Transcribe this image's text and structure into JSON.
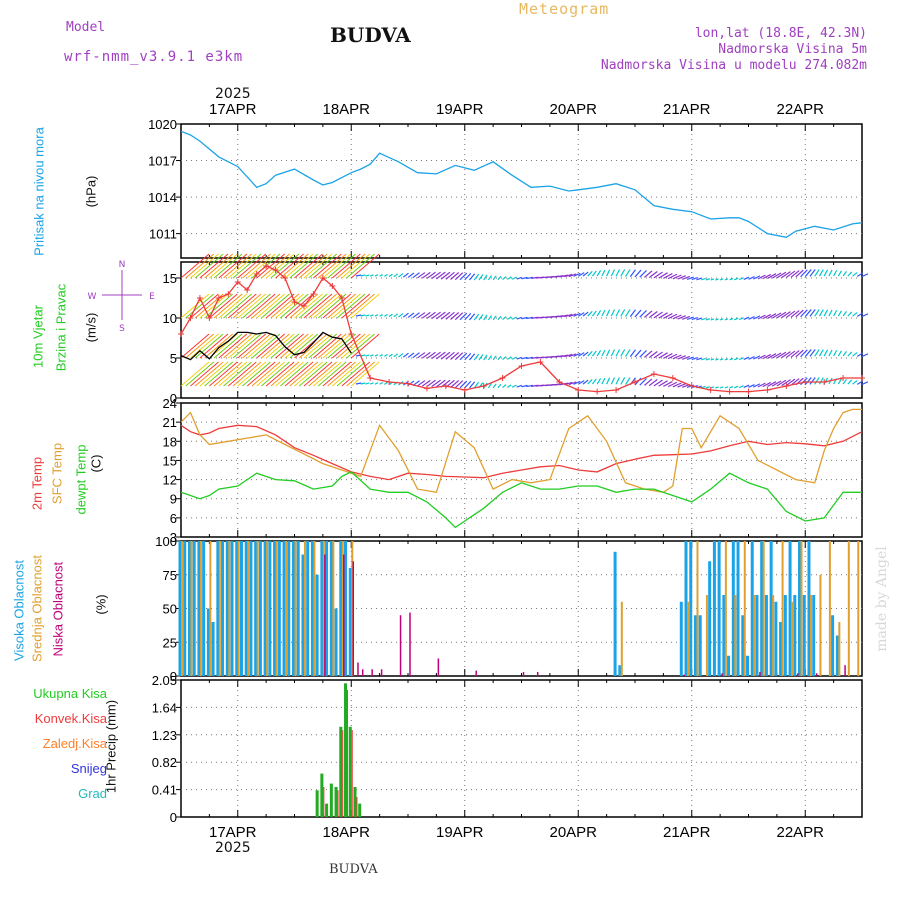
{
  "header": {
    "model_label": "Model",
    "model_name": "wrf-nmm_v3.9.1 e3km",
    "station": "BUDVA",
    "title": "Meteogram",
    "lonlat": "lon,lat (18.8E, 42.3N)",
    "elevation": "Nadmorska Visina 5m",
    "model_elevation": "Nadmorska Visina u modelu 274.082m",
    "footer_station": "BUDVA",
    "watermark": "made by Angel"
  },
  "colors": {
    "pressure": "#1aa3e6",
    "wind": "#00b050",
    "wind_speed": "#000000",
    "gust": "#ee3b3b",
    "temp2m": "#ee3b3b",
    "sfc": "#e0a030",
    "dewpt": "#22cc22",
    "high_cloud": "#1aa3e6",
    "mid_cloud": "#e0a030",
    "low_cloud": "#c0007a",
    "total_rain": "#22aa22",
    "conv_rain": "#ee3b3b",
    "freezing": "#ff7f27",
    "snow": "#3333dd",
    "hail": "#22bbbb",
    "title": "#e8b860",
    "meta": "#a040c0"
  },
  "chart_data": {
    "type": "meteogram",
    "time_axis": {
      "start": "2025-04-16 12:00",
      "end": "2025-04-22 12:00",
      "step_hours": 1,
      "top_year": "2025",
      "bottom_year": "2025",
      "tick_labels": [
        "17APR",
        "18APR",
        "19APR",
        "20APR",
        "21APR",
        "22APR"
      ],
      "tick_hours": [
        12,
        36,
        60,
        84,
        108,
        132
      ]
    },
    "panels": [
      {
        "id": "pressure",
        "type": "line",
        "ylabel_lines": [
          "Pritisak na nivou mora",
          "(hPa)"
        ],
        "ylim": [
          1009,
          1020
        ],
        "yticks": [
          1011,
          1014,
          1017,
          1020
        ],
        "series": [
          {
            "name": "MSLP",
            "x": [
              0,
              2,
              4,
              8,
              12,
              16,
              18,
              20,
              24,
              28,
              30,
              32,
              34,
              36,
              38,
              40,
              42,
              46,
              50,
              54,
              58,
              62,
              66,
              70,
              74,
              78,
              82,
              84,
              88,
              92,
              96,
              100,
              104,
              108,
              112,
              116,
              118,
              120,
              124,
              128,
              130,
              134,
              138,
              142,
              144
            ],
            "values": [
              1019.4,
              1019.1,
              1018.6,
              1017.3,
              1016.5,
              1014.8,
              1015.1,
              1015.8,
              1016.3,
              1015.4,
              1015.0,
              1015.2,
              1015.6,
              1016.0,
              1016.3,
              1016.7,
              1017.6,
              1016.9,
              1016.0,
              1015.9,
              1016.6,
              1016.2,
              1016.9,
              1015.8,
              1014.8,
              1014.9,
              1014.5,
              1014.6,
              1014.8,
              1015.1,
              1014.6,
              1013.3,
              1013.0,
              1012.8,
              1012.2,
              1012.3,
              1012.3,
              1012.0,
              1011.0,
              1010.7,
              1011.2,
              1011.6,
              1011.3,
              1011.8,
              1011.9
            ]
          }
        ]
      },
      {
        "id": "wind",
        "type": "line",
        "ylabel_lines": [
          "10m Vjetar",
          "Brzina i Pravac",
          "(m/s)"
        ],
        "compass": [
          "N",
          "W",
          "E",
          "S"
        ],
        "ylim": [
          0,
          17
        ],
        "yticks": [
          0,
          5,
          10,
          15
        ],
        "series": [
          {
            "name": "Wind speed",
            "x": [
              0,
              2,
              4,
              6,
              8,
              10,
              12,
              14,
              16,
              18,
              20,
              22,
              24,
              26,
              28,
              30,
              32,
              34,
              36
            ],
            "values": [
              5.3,
              4.8,
              5.9,
              4.9,
              6.3,
              7.1,
              8.2,
              8.2,
              8.0,
              8.2,
              7.8,
              6.4,
              5.4,
              5.7,
              6.9,
              8.2,
              7.6,
              7.4,
              5.6
            ]
          },
          {
            "name": "Gust",
            "x": [
              0,
              2,
              4,
              6,
              8,
              10,
              12,
              14,
              16,
              18,
              20,
              22,
              24,
              26,
              28,
              30,
              32,
              34,
              36,
              40,
              44,
              48,
              52,
              56,
              60,
              64,
              68,
              72,
              76,
              80,
              84,
              88,
              92,
              96,
              100,
              104,
              108,
              112,
              116,
              120,
              124,
              128,
              132,
              136,
              140,
              144
            ],
            "values": [
              8.0,
              10.0,
              12.5,
              10.0,
              12.5,
              13.0,
              14.5,
              13.5,
              15.5,
              16.5,
              16.0,
              15.0,
              12.0,
              11.5,
              13.0,
              15.0,
              14.0,
              12.5,
              8.0,
              2.5,
              2.0,
              1.8,
              1.2,
              1.5,
              1.0,
              1.5,
              2.5,
              4.0,
              4.5,
              2.0,
              1.0,
              0.8,
              1.0,
              2.0,
              3.0,
              2.5,
              1.5,
              1.0,
              0.8,
              0.8,
              1.0,
              1.5,
              2.0,
              2.0,
              2.5,
              2.5
            ]
          }
        ],
        "barb_rows_ms": [
          15,
          10,
          5,
          1.5
        ]
      },
      {
        "id": "temperature",
        "type": "line",
        "ylabel_lines": [
          "2m Temp",
          "SFC Temp",
          "dewpt Temp",
          "(C)"
        ],
        "ylim": [
          3,
          24
        ],
        "yticks": [
          3,
          6,
          9,
          12,
          15,
          18,
          21,
          24
        ],
        "series": [
          {
            "name": "2m Temp",
            "x": [
              0,
              2,
              4,
              6,
              8,
              12,
              16,
              20,
              24,
              28,
              32,
              36,
              40,
              44,
              48,
              52,
              56,
              60,
              64,
              68,
              72,
              76,
              80,
              84,
              88,
              92,
              96,
              100,
              104,
              108,
              112,
              116,
              120,
              124,
              128,
              132,
              136,
              140,
              144
            ],
            "values": [
              20.5,
              19.5,
              19.0,
              19.3,
              20.0,
              20.5,
              20.3,
              19.0,
              17.0,
              15.8,
              14.5,
              13.2,
              12.5,
              12.0,
              13.0,
              12.8,
              12.5,
              12.4,
              12.3,
              13.0,
              13.5,
              14.0,
              14.2,
              13.5,
              13.2,
              14.5,
              15.2,
              15.8,
              15.9,
              16.0,
              16.5,
              17.3,
              18.0,
              17.5,
              17.8,
              17.6,
              17.3,
              18.0,
              19.5
            ]
          },
          {
            "name": "SFC Temp",
            "x": [
              0,
              2,
              4,
              6,
              10,
              14,
              18,
              22,
              26,
              30,
              34,
              38,
              42,
              46,
              50,
              54,
              58,
              62,
              66,
              70,
              74,
              78,
              82,
              86,
              90,
              94,
              98,
              102,
              104,
              106,
              108,
              110,
              114,
              118,
              122,
              126,
              130,
              134,
              136,
              138,
              140,
              142,
              144
            ],
            "values": [
              21.0,
              22.5,
              19.0,
              17.5,
              18.0,
              18.5,
              19.0,
              17.5,
              16.0,
              14.5,
              13.5,
              12.5,
              20.5,
              16.5,
              10.5,
              10.0,
              19.5,
              17.0,
              10.5,
              12.0,
              11.5,
              12.0,
              20.0,
              22.0,
              18.0,
              11.5,
              10.5,
              10.0,
              11.0,
              20.0,
              20.0,
              17.0,
              22.0,
              20.0,
              15.0,
              13.5,
              12.0,
              11.5,
              16.5,
              20.0,
              22.5,
              23.0,
              23.0
            ]
          },
          {
            "name": "dewpt Temp",
            "x": [
              0,
              2,
              4,
              6,
              8,
              12,
              16,
              20,
              24,
              28,
              32,
              34,
              36,
              40,
              44,
              48,
              52,
              56,
              58,
              60,
              62,
              64,
              68,
              72,
              76,
              80,
              84,
              88,
              92,
              96,
              100,
              104,
              108,
              112,
              116,
              120,
              124,
              128,
              132,
              136,
              138,
              140,
              142,
              144
            ],
            "values": [
              10.0,
              9.5,
              9.0,
              9.5,
              10.5,
              11.0,
              13.0,
              12.0,
              11.8,
              10.5,
              11.0,
              12.5,
              13.2,
              10.5,
              10.0,
              10.0,
              8.5,
              6.0,
              4.5,
              5.5,
              6.5,
              7.5,
              10.0,
              11.5,
              10.5,
              10.5,
              11.0,
              11.0,
              10.0,
              10.5,
              10.5,
              9.5,
              8.5,
              10.5,
              13.0,
              11.5,
              10.5,
              7.0,
              5.5,
              6.0,
              8.0,
              10.0,
              10.0,
              10.0
            ]
          }
        ]
      },
      {
        "id": "clouds",
        "type": "bar",
        "ylabel_lines": [
          "Visoka Oblacnost",
          "Srednja Oblacnost",
          "Niska Oblacnost",
          "(%)"
        ],
        "ylim": [
          0,
          100
        ],
        "yticks": [
          0,
          25,
          50,
          75,
          100
        ],
        "series": [
          {
            "name": "Visoka Oblacnost",
            "x": [
              0,
              1,
              2,
              3,
              4,
              5,
              6,
              7,
              8,
              9,
              10,
              11,
              12,
              13,
              14,
              15,
              16,
              17,
              18,
              19,
              20,
              21,
              22,
              23,
              24,
              25,
              26,
              27,
              28,
              29,
              30,
              31,
              32,
              33,
              34,
              35,
              36,
              92,
              93,
              106,
              107,
              108,
              109,
              110,
              112,
              113,
              114,
              115,
              116,
              117,
              118,
              119,
              120,
              121,
              122,
              123,
              124,
              125,
              126,
              127,
              128,
              129,
              130,
              131,
              132,
              133,
              134,
              138,
              139
            ],
            "values": [
              100,
              100,
              100,
              100,
              100,
              100,
              50,
              40,
              100,
              100,
              100,
              100,
              100,
              100,
              100,
              100,
              100,
              100,
              100,
              100,
              100,
              100,
              100,
              100,
              100,
              100,
              90,
              100,
              100,
              75,
              100,
              100,
              100,
              50,
              100,
              100,
              80,
              92,
              8,
              55,
              100,
              100,
              45,
              45,
              85,
              100,
              100,
              60,
              15,
              100,
              100,
              45,
              15,
              100,
              60,
              100,
              60,
              100,
              55,
              40,
              60,
              100,
              60,
              100,
              60,
              100,
              60,
              45,
              30
            ]
          },
          {
            "name": "Srednja Oblacnost",
            "x": [
              0,
              2,
              4,
              6,
              8,
              10,
              12,
              14,
              16,
              18,
              20,
              22,
              24,
              26,
              28,
              30,
              32,
              34,
              36,
              93,
              107,
              109,
              111,
              115,
              117,
              119,
              121,
              123,
              125,
              127,
              129,
              131,
              133,
              135,
              137,
              139,
              141,
              143
            ],
            "values": [
              100,
              100,
              100,
              100,
              100,
              100,
              100,
              100,
              100,
              100,
              100,
              100,
              100,
              100,
              100,
              100,
              100,
              100,
              100,
              55,
              55,
              100,
              60,
              100,
              60,
              100,
              60,
              100,
              60,
              100,
              55,
              100,
              60,
              75,
              100,
              40,
              100,
              100
            ]
          },
          {
            "name": "Niska Oblacnost",
            "x": [
              30,
              34,
              36,
              37,
              38,
              40,
              42,
              46,
              48,
              54,
              62,
              72,
              75,
              106,
              114,
              122,
              130,
              134,
              140
            ],
            "values": [
              90,
              90,
              85,
              10,
              5,
              5,
              5,
              45,
              47,
              13,
              4,
              3,
              3,
              1,
              2,
              3,
              2,
              2,
              8
            ]
          }
        ]
      },
      {
        "id": "precip",
        "type": "bar",
        "ylabel_lines": [
          "1hr Precip (mm)"
        ],
        "ylim": [
          0,
          2.05
        ],
        "yticks": [
          0,
          0.41,
          0.82,
          1.23,
          1.64,
          2.05
        ],
        "ytick_labels": [
          "0",
          "0.41",
          "0.82",
          "1.23",
          "1.64",
          "2.05"
        ],
        "legend": [
          "Ukupna Kisa",
          "Konvek.Kisa",
          "Zaledj.Kisa",
          "Snijeg",
          "Grad"
        ],
        "series": [
          {
            "name": "Ukupna Kisa",
            "x": [
              29,
              30,
              31,
              32,
              33,
              34,
              35,
              36,
              37,
              38
            ],
            "values": [
              0.4,
              0.65,
              0.2,
              0.5,
              0.45,
              1.35,
              2.0,
              1.35,
              0.45,
              0.2
            ]
          },
          {
            "name": "Konvek.Kisa",
            "x": [
              30,
              33,
              34,
              35,
              36,
              37
            ],
            "values": [
              0.45,
              0.4,
              1.3,
              1.9,
              1.3,
              0.3
            ]
          }
        ]
      }
    ]
  }
}
